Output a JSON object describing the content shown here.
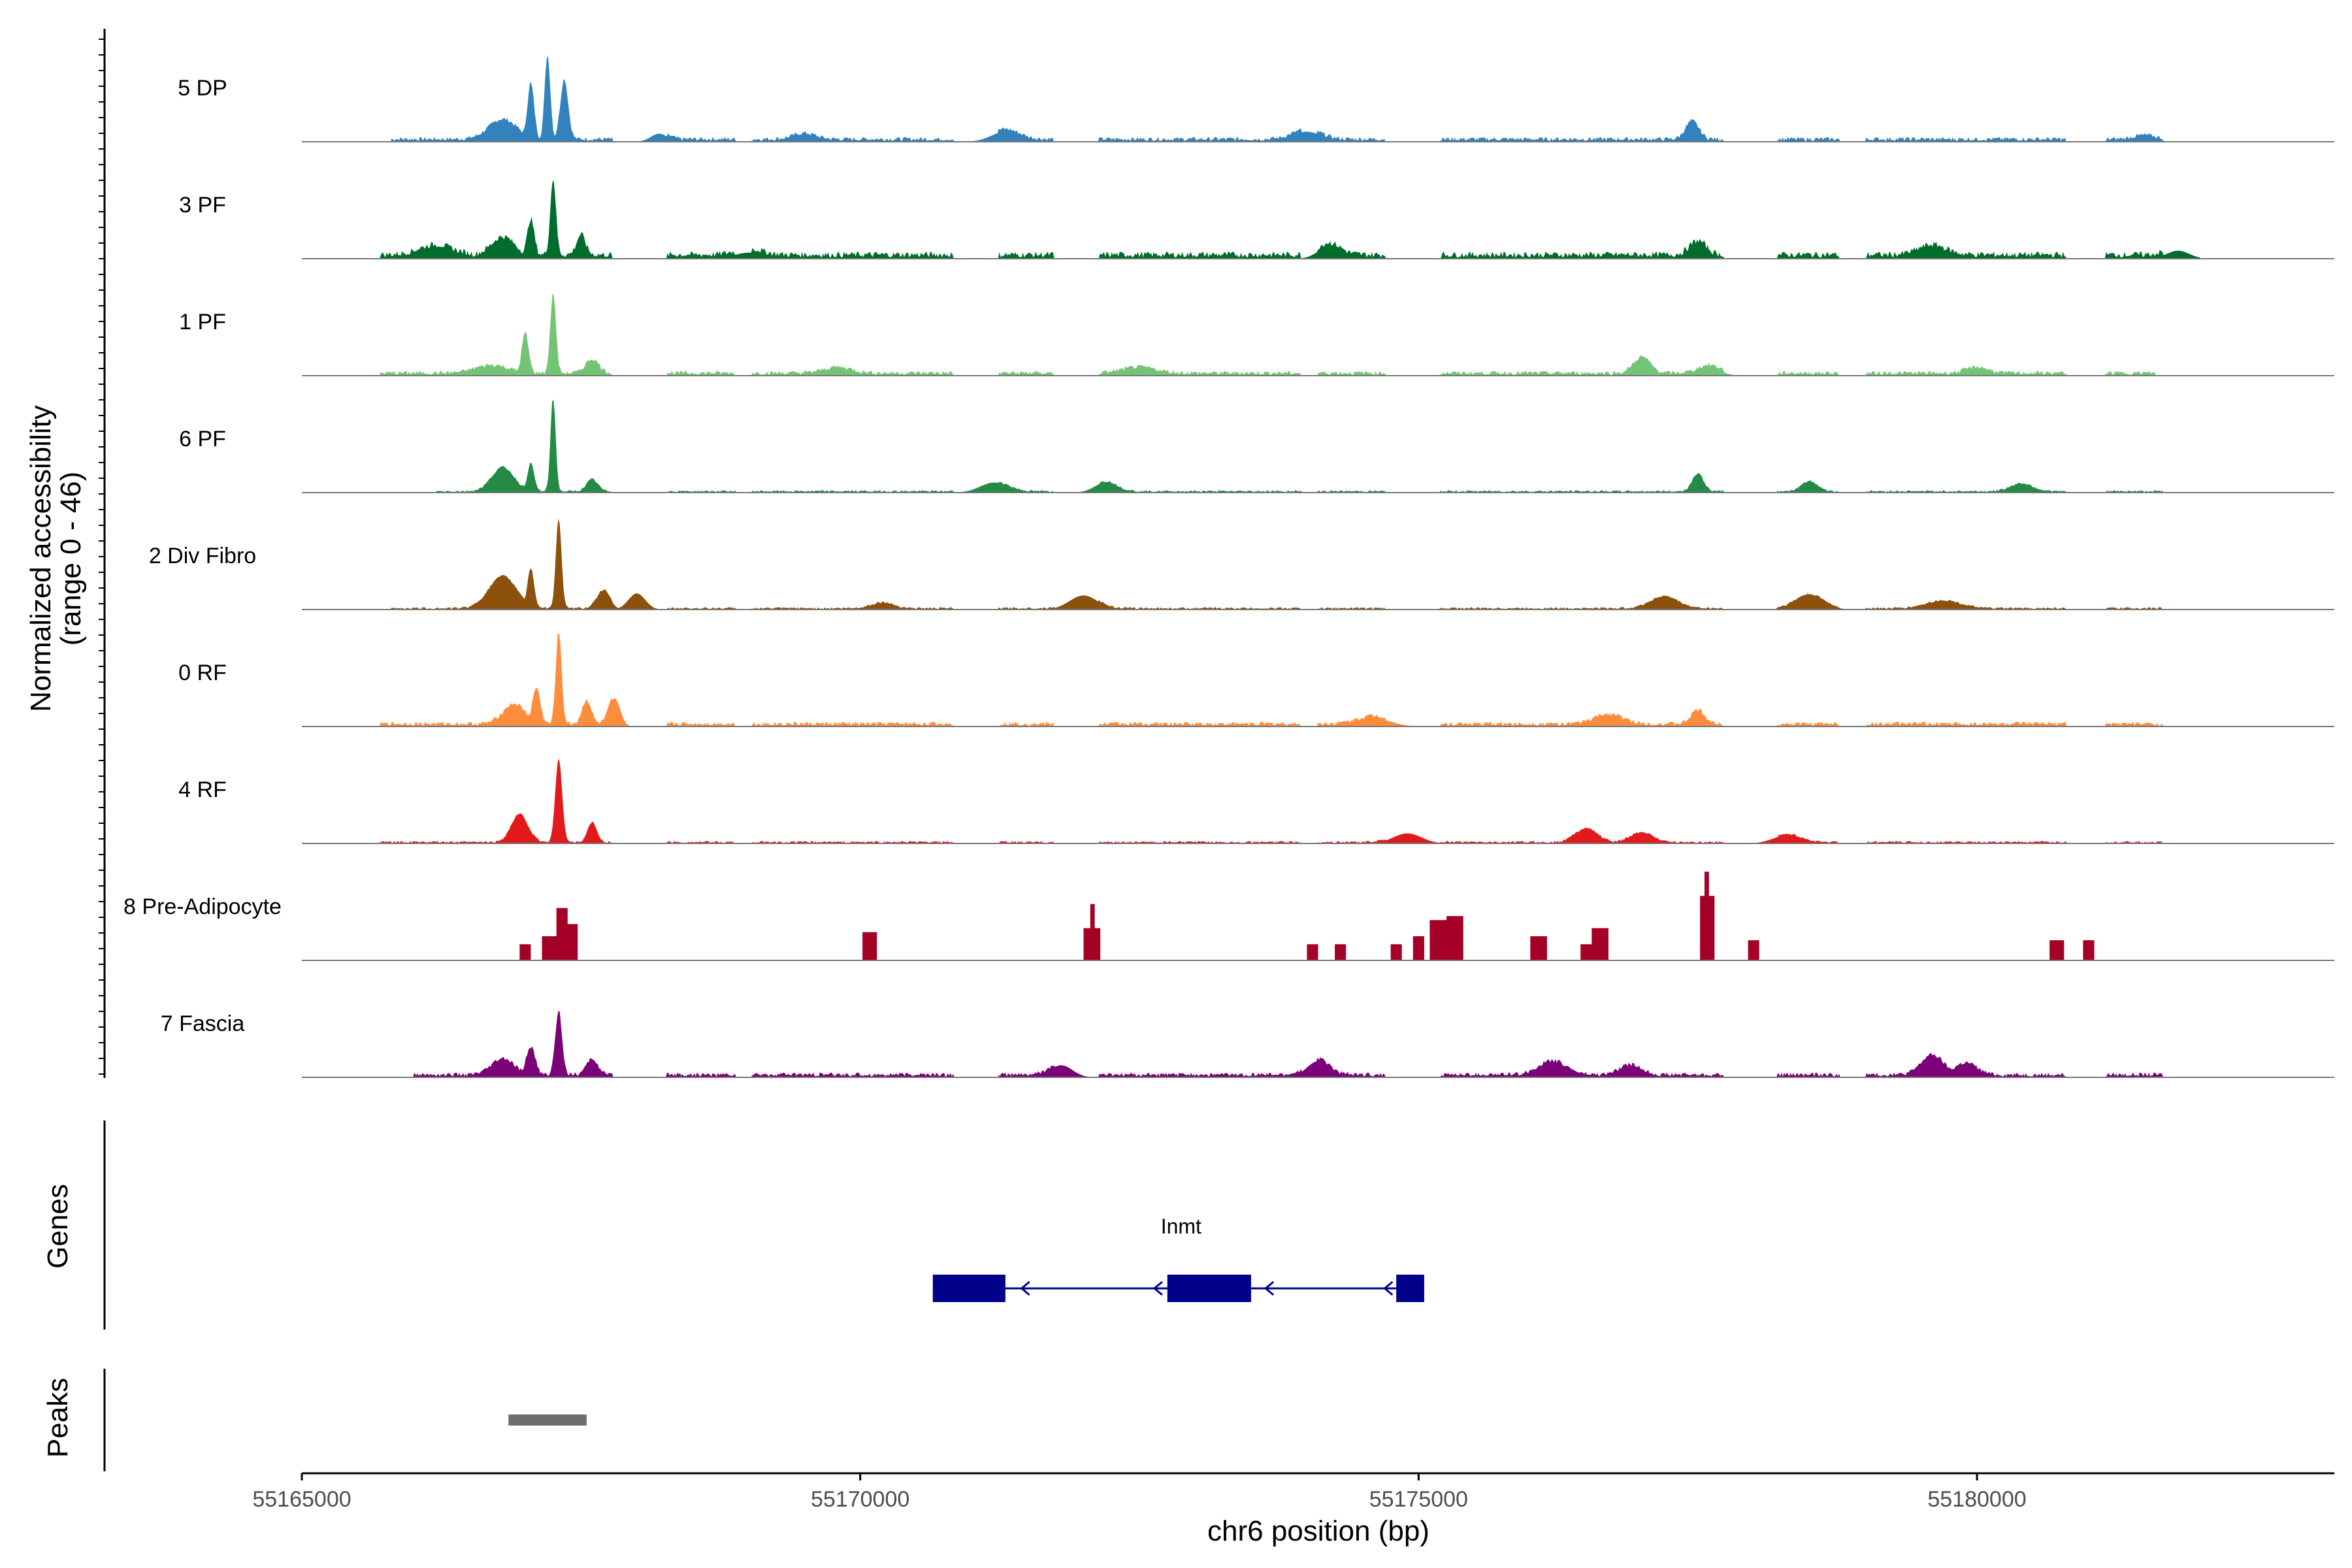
{
  "chart_data": {
    "type": "area",
    "region": {
      "chrom": "chr6",
      "start": 55165000,
      "end": 55183200
    },
    "xlabel": "chr6 position (bp)",
    "ylabel": "Normalized accessibility",
    "ylabel_sub": "(range 0 - 46)",
    "ylim": [
      0,
      46
    ],
    "xticks": [
      55165000,
      55170000,
      55175000,
      55180000
    ],
    "xtick_labels": [
      "55165000",
      "55170000",
      "55175000",
      "55180000"
    ],
    "series": [
      {
        "name": "5 DP",
        "color": "#3182BD",
        "data_start": 55165800,
        "data_end": 55182000,
        "base": 2,
        "peaks": [
          [
            55166800,
            10,
            250
          ],
          [
            55167050,
            28,
            60
          ],
          [
            55167200,
            42,
            50
          ],
          [
            55167350,
            30,
            70
          ],
          [
            55168200,
            4,
            150
          ],
          [
            55169500,
            3,
            200
          ],
          [
            55171300,
            5,
            250
          ],
          [
            55174000,
            5,
            250
          ],
          [
            55177450,
            9,
            120
          ],
          [
            55181500,
            2,
            200
          ]
        ]
      },
      {
        "name": "3 PF",
        "color": "#006D2C",
        "data_start": 55165700,
        "data_end": 55182000,
        "base": 3,
        "peaks": [
          [
            55166200,
            5,
            300
          ],
          [
            55166800,
            9,
            200
          ],
          [
            55167050,
            18,
            60
          ],
          [
            55167250,
            38,
            50
          ],
          [
            55167500,
            10,
            80
          ],
          [
            55169000,
            3,
            250
          ],
          [
            55174200,
            6,
            200
          ],
          [
            55177500,
            7,
            150
          ],
          [
            55179600,
            5,
            250
          ],
          [
            55181800,
            4,
            200
          ]
        ]
      },
      {
        "name": "1 PF",
        "color": "#74C476",
        "data_start": 55165700,
        "data_end": 55181600,
        "base": 2,
        "peaks": [
          [
            55166700,
            4,
            300
          ],
          [
            55167000,
            20,
            60
          ],
          [
            55167250,
            40,
            50
          ],
          [
            55167600,
            7,
            120
          ],
          [
            55169800,
            3,
            250
          ],
          [
            55172500,
            3,
            300
          ],
          [
            55177000,
            8,
            150
          ],
          [
            55177600,
            4,
            200
          ],
          [
            55180000,
            3,
            200
          ]
        ]
      },
      {
        "name": "6 PF",
        "color": "#238B45",
        "data_start": 55166200,
        "data_end": 55182000,
        "base": 1,
        "peaks": [
          [
            55166800,
            12,
            200
          ],
          [
            55167050,
            14,
            60
          ],
          [
            55167250,
            48,
            45
          ],
          [
            55167600,
            6,
            100
          ],
          [
            55171200,
            5,
            250
          ],
          [
            55172200,
            5,
            200
          ],
          [
            55177500,
            9,
            100
          ],
          [
            55178500,
            5,
            150
          ],
          [
            55180400,
            4,
            200
          ]
        ]
      },
      {
        "name": "2 Div Fibro",
        "color": "#8C510A",
        "data_start": 55165800,
        "data_end": 55182000,
        "base": 1,
        "peaks": [
          [
            55166800,
            16,
            250
          ],
          [
            55167050,
            20,
            60
          ],
          [
            55167300,
            45,
            50
          ],
          [
            55167700,
            9,
            120
          ],
          [
            55168000,
            8,
            150
          ],
          [
            55170200,
            3,
            200
          ],
          [
            55172000,
            7,
            250
          ],
          [
            55177200,
            6,
            250
          ],
          [
            55178500,
            7,
            250
          ],
          [
            55179700,
            4,
            300
          ]
        ]
      },
      {
        "name": "0 RF",
        "color": "#FD8D3C",
        "data_start": 55165700,
        "data_end": 55181800,
        "base": 2,
        "peaks": [
          [
            55166900,
            10,
            200
          ],
          [
            55167100,
            18,
            70
          ],
          [
            55167300,
            48,
            50
          ],
          [
            55167550,
            12,
            80
          ],
          [
            55167800,
            14,
            100
          ],
          [
            55174600,
            4,
            300
          ],
          [
            55176700,
            5,
            250
          ],
          [
            55177500,
            7,
            120
          ]
        ]
      },
      {
        "name": "4 RF",
        "color": "#E31A1C",
        "data_start": 55165700,
        "data_end": 55181800,
        "base": 1,
        "peaks": [
          [
            55166950,
            14,
            150
          ],
          [
            55167300,
            42,
            60
          ],
          [
            55167600,
            10,
            80
          ],
          [
            55174900,
            5,
            250
          ],
          [
            55176500,
            7,
            200
          ],
          [
            55177000,
            5,
            200
          ],
          [
            55178300,
            4,
            250
          ]
        ]
      },
      {
        "name": "8 Pre-Adipocyte",
        "color": "#A50026",
        "discrete": true,
        "blocks": [
          [
            55166950,
            55167050,
            8
          ],
          [
            55167150,
            55167280,
            12
          ],
          [
            55167280,
            55167380,
            26
          ],
          [
            55167380,
            55167470,
            18
          ],
          [
            55170020,
            55170150,
            14
          ],
          [
            55172000,
            55172150,
            16
          ],
          [
            55172060,
            55172100,
            28
          ],
          [
            55174000,
            55174100,
            8
          ],
          [
            55174250,
            55174350,
            8
          ],
          [
            55174750,
            55174850,
            8
          ],
          [
            55174950,
            55175050,
            12
          ],
          [
            55175100,
            55175250,
            20
          ],
          [
            55175250,
            55175400,
            22
          ],
          [
            55176000,
            55176150,
            12
          ],
          [
            55176450,
            55176550,
            8
          ],
          [
            55176550,
            55176700,
            16
          ],
          [
            55177520,
            55177650,
            32
          ],
          [
            55177560,
            55177600,
            44
          ],
          [
            55177950,
            55178050,
            10
          ],
          [
            55180650,
            55180780,
            10
          ],
          [
            55180950,
            55181050,
            10
          ]
        ]
      },
      {
        "name": "7 Fascia",
        "color": "#7A0177",
        "data_start": 55166000,
        "data_end": 55181900,
        "base": 2,
        "peaks": [
          [
            55166800,
            8,
            200
          ],
          [
            55167050,
            14,
            80
          ],
          [
            55167300,
            32,
            60
          ],
          [
            55167600,
            8,
            100
          ],
          [
            55171800,
            6,
            200
          ],
          [
            55174100,
            8,
            200
          ],
          [
            55176200,
            7,
            250
          ],
          [
            55176900,
            5,
            200
          ],
          [
            55179600,
            10,
            200
          ],
          [
            55179900,
            6,
            200
          ]
        ]
      }
    ],
    "genes": [
      {
        "name": "Inmt",
        "strand": "-",
        "start": 55170650,
        "end": 55175050,
        "exons": [
          [
            55170650,
            55171300
          ],
          [
            55172750,
            55173500
          ],
          [
            55174800,
            55175050
          ]
        ]
      }
    ],
    "peaks_track": [
      {
        "start": 55166850,
        "end": 55167550
      }
    ],
    "panel_labels": {
      "genes": "Genes",
      "peaks": "Peaks"
    },
    "colors": {
      "gene": "#00008B",
      "peak": "#6E6E6E",
      "baseline": "#777777",
      "axis": "#000000"
    }
  }
}
